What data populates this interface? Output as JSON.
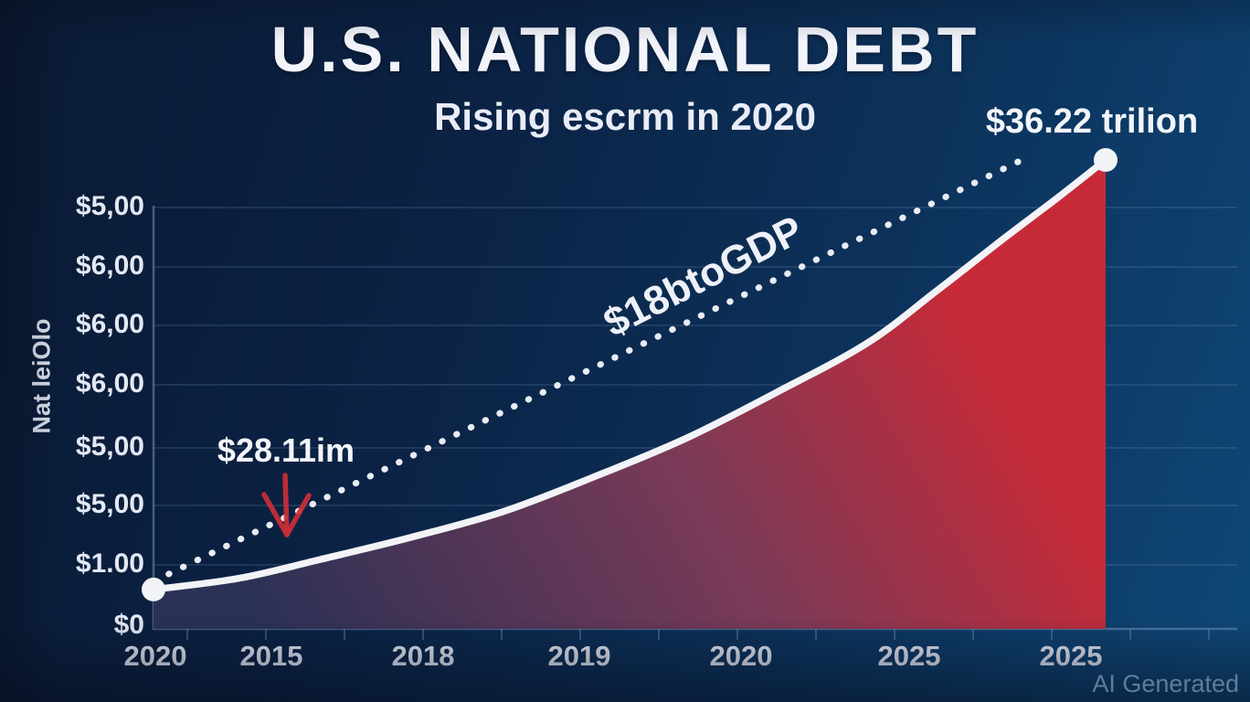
{
  "labels": {
    "title": "U.S. NATIONAL DEBT",
    "subtitle": "Rising escrm in 2020",
    "peak_annotation": "$36.22 trilion",
    "mid_annotation": "$28.11im",
    "gdp_annotation": "$18btoGDP",
    "y_axis_title": "Nat leiOlo",
    "watermark": "AI Generated"
  },
  "chart_data": {
    "type": "area",
    "title": "U.S. NATIONAL DEBT",
    "subtitle": "Rising escrm in 2020",
    "xlabel": "",
    "ylabel": "Nat leiOlo",
    "x_tick_labels": [
      "2020",
      "2015",
      "2018",
      "2019",
      "2020",
      "2025",
      "2025"
    ],
    "y_tick_labels_top_to_bottom": [
      "$5,00",
      "$6,00",
      "$6,00",
      "$6,00",
      "$5,00",
      "$5,00",
      "$1.00",
      "$0"
    ],
    "grid": true,
    "legend": false,
    "series": [
      {
        "name": "national-debt-curve",
        "style": "solid-line-with-area-fill",
        "end_label": "$36.22 trilion",
        "points_norm": [
          [
            0.0,
            0.084
          ],
          [
            0.09,
            0.108
          ],
          [
            0.175,
            0.148
          ],
          [
            0.27,
            0.195
          ],
          [
            0.367,
            0.25
          ],
          [
            0.46,
            0.322
          ],
          [
            0.559,
            0.406
          ],
          [
            0.655,
            0.505
          ],
          [
            0.75,
            0.61
          ],
          [
            0.822,
            0.72
          ],
          [
            0.894,
            0.834
          ],
          [
            0.95,
            0.92
          ],
          [
            1.0,
            1.0
          ]
        ]
      },
      {
        "name": "debt-to-gdp-trend",
        "style": "dotted-line",
        "label": "$18btoGDP",
        "points_norm": [
          [
            0.016,
            0.117
          ],
          [
            0.912,
            1.0
          ]
        ]
      }
    ],
    "annotations": [
      {
        "text": "$36.22 trilion",
        "target": "curve-peak"
      },
      {
        "text": "$28.11im",
        "target": "early-curve",
        "marker": "red-down-arrow"
      },
      {
        "text": "$18btoGDP",
        "target": "dotted-trend-line",
        "rotation_deg": -27
      }
    ],
    "colors": {
      "background_left": "#0a1a33",
      "background_right": "#0e4878",
      "area_bottom": "#2b3156",
      "area_mid": "#7c3a57",
      "area_top": "#c62a38",
      "line": "#f2f3f7",
      "dotted_line": "#e9ecf3",
      "arrow": "#cd2e36",
      "grid": "#8caad2",
      "axis_text": "#e3e8f4"
    }
  }
}
